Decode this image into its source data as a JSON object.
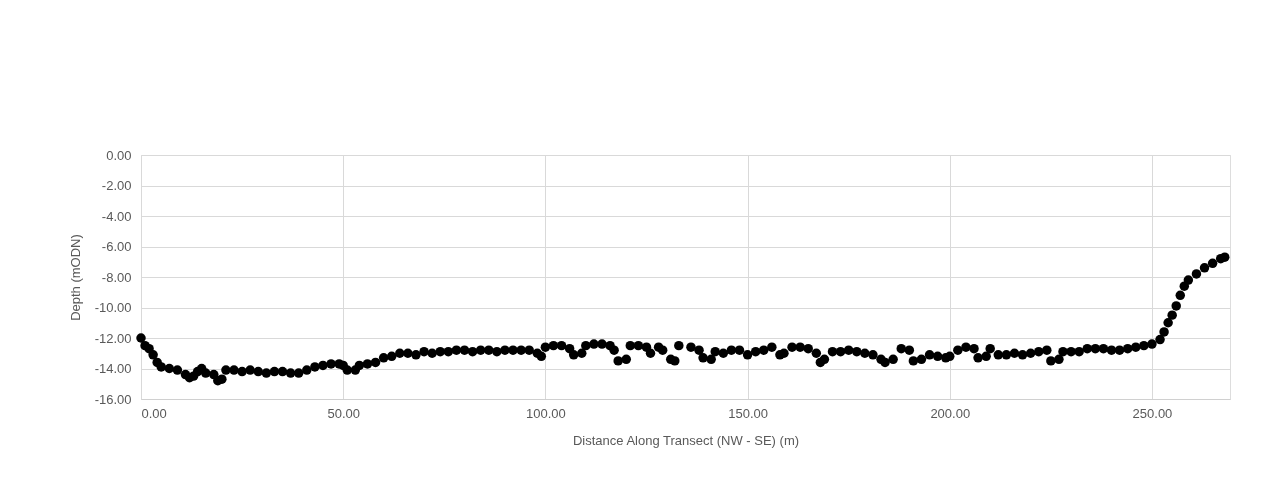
{
  "chart_data": {
    "type": "scatter",
    "xlabel": "Distance Along Transect (NW - SE) (m)",
    "ylabel": "Depth (mODN)",
    "xlim": [
      0,
      269.3
    ],
    "ylim": [
      -16,
      0
    ],
    "xticks": [
      {
        "value": 0,
        "label": "0.00"
      },
      {
        "value": 50,
        "label": "50.00"
      },
      {
        "value": 100,
        "label": "100.00"
      },
      {
        "value": 150,
        "label": "150.00"
      },
      {
        "value": 200,
        "label": "200.00"
      },
      {
        "value": 250,
        "label": "250.00"
      }
    ],
    "yticks": [
      {
        "value": 0,
        "label": "0.00"
      },
      {
        "value": -2,
        "label": "-2.00"
      },
      {
        "value": -4,
        "label": "-4.00"
      },
      {
        "value": -6,
        "label": "-6.00"
      },
      {
        "value": -8,
        "label": "-8.00"
      },
      {
        "value": -10,
        "label": "-10.00"
      },
      {
        "value": -12,
        "label": "-12.00"
      },
      {
        "value": -14,
        "label": "-14.00"
      },
      {
        "value": -16,
        "label": "-16.00"
      }
    ],
    "grid": true,
    "marker": "circle",
    "series": [
      {
        "color": "#000000",
        "x": [
          0,
          1,
          2,
          3,
          4,
          5,
          7,
          9,
          11,
          12,
          13,
          14,
          15,
          16,
          18,
          19,
          20,
          21,
          23,
          25,
          27,
          29,
          31,
          33,
          35,
          37,
          39,
          41,
          43,
          45,
          47,
          49,
          50,
          51,
          53,
          54,
          56,
          58,
          60,
          62,
          64,
          66,
          68,
          70,
          72,
          74,
          76,
          78,
          80,
          82,
          84,
          86,
          88,
          90,
          92,
          94,
          96,
          98,
          99,
          100,
          102,
          104,
          106,
          107,
          109,
          110,
          112,
          114,
          116,
          117,
          118,
          120,
          121,
          123,
          125,
          126,
          128,
          129,
          131,
          132,
          133,
          136,
          138,
          139,
          141,
          142,
          144,
          146,
          148,
          150,
          152,
          154,
          156,
          158,
          159,
          161,
          163,
          165,
          167,
          168,
          169,
          171,
          173,
          175,
          177,
          179,
          181,
          183,
          184,
          186,
          188,
          190,
          191,
          193,
          195,
          197,
          199,
          200,
          202,
          204,
          206,
          207,
          209,
          210,
          212,
          214,
          216,
          218,
          220,
          222,
          224,
          225,
          227,
          228,
          230,
          232,
          234,
          236,
          238,
          240,
          242,
          244,
          246,
          248,
          250,
          252,
          253,
          254,
          255,
          256,
          257,
          258,
          259,
          261,
          263,
          265,
          267,
          268
        ],
        "values": [
          -12.0,
          -12.5,
          -12.7,
          -13.1,
          -13.6,
          -13.9,
          -14.0,
          -14.1,
          -14.4,
          -14.6,
          -14.5,
          -14.2,
          -14.0,
          -14.3,
          -14.4,
          -14.8,
          -14.7,
          -14.1,
          -14.1,
          -14.2,
          -14.1,
          -14.2,
          -14.3,
          -14.2,
          -14.2,
          -14.3,
          -14.3,
          -14.1,
          -13.9,
          -13.8,
          -13.7,
          -13.7,
          -13.8,
          -14.1,
          -14.1,
          -13.8,
          -13.7,
          -13.6,
          -13.3,
          -13.2,
          -13.0,
          -13.0,
          -13.1,
          -12.9,
          -13.0,
          -12.9,
          -12.9,
          -12.8,
          -12.8,
          -12.9,
          -12.8,
          -12.8,
          -12.9,
          -12.8,
          -12.8,
          -12.8,
          -12.8,
          -13.0,
          -13.2,
          -12.6,
          -12.5,
          -12.5,
          -12.7,
          -13.1,
          -13.0,
          -12.5,
          -12.4,
          -12.4,
          -12.5,
          -12.8,
          -13.5,
          -13.4,
          -12.5,
          -12.5,
          -12.6,
          -13.0,
          -12.6,
          -12.8,
          -13.4,
          -13.5,
          -12.5,
          -12.6,
          -12.8,
          -13.3,
          -13.4,
          -12.9,
          -13.0,
          -12.8,
          -12.8,
          -13.1,
          -12.9,
          -12.8,
          -12.6,
          -13.1,
          -13.0,
          -12.6,
          -12.6,
          -12.7,
          -13.0,
          -13.6,
          -13.4,
          -12.9,
          -12.9,
          -12.8,
          -12.9,
          -13.0,
          -13.1,
          -13.4,
          -13.6,
          -13.4,
          -12.7,
          -12.8,
          -13.5,
          -13.4,
          -13.1,
          -13.2,
          -13.3,
          -13.2,
          -12.8,
          -12.6,
          -12.7,
          -13.3,
          -13.2,
          -12.7,
          -13.1,
          -13.1,
          -13.0,
          -13.1,
          -13.0,
          -12.9,
          -12.8,
          -13.5,
          -13.4,
          -12.9,
          -12.9,
          -12.9,
          -12.7,
          -12.7,
          -12.7,
          -12.8,
          -12.8,
          -12.7,
          -12.6,
          -12.5,
          -12.4,
          -12.1,
          -11.6,
          -11.0,
          -10.5,
          -9.9,
          -9.2,
          -8.6,
          -8.2,
          -7.8,
          -7.4,
          -7.1,
          -6.8,
          -6.7
        ]
      }
    ]
  }
}
